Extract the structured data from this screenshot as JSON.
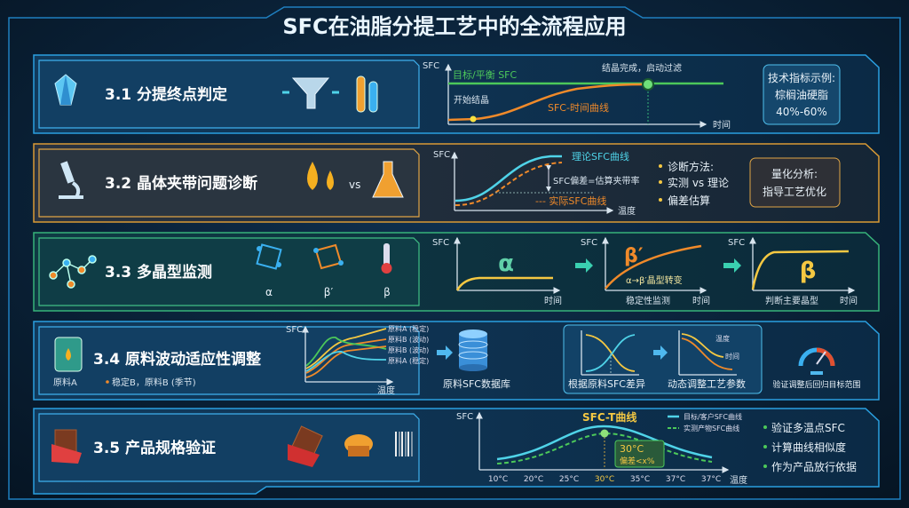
{
  "title": "SFC在油脂分提工艺中的全流程应用",
  "colors": {
    "blue": "#2a9fe0",
    "orange": "#d99a35",
    "green": "#37b37a",
    "cyan": "#4fd3e8",
    "curve_orange": "#f08a2a",
    "yellow": "#f5c842",
    "line_green": "#4cc85a"
  },
  "rows": [
    {
      "title": "3.1 分提终点判定",
      "icons": [
        "crystal-icon",
        "funnel-icon",
        "test-tubes-icon"
      ],
      "chart": {
        "y_label": "SFC",
        "x_label": "时间",
        "target_label": "目标/平衡 SFC",
        "curve_label": "SFC-时间曲线",
        "start_label": "开始结晶",
        "end_label": "结晶完成，启动过滤"
      },
      "info": [
        "技术指标示例:",
        "棕榈油硬脂",
        "40%-60%"
      ]
    },
    {
      "title": "3.2 晶体夹带问题诊断",
      "icons": [
        "microscope-icon",
        "oil-drops-icon",
        "flask-icon"
      ],
      "vs": "vs",
      "chart": {
        "y_label": "SFC",
        "x_label": "温度",
        "theory_label": "理论SFC曲线",
        "actual_label": "--- 实际SFC曲线",
        "gap_label": "SFC偏差=估算夹带率"
      },
      "bullets": [
        "诊断方法:",
        "实测 vs 理论",
        "偏差估算"
      ],
      "info": [
        "量化分析:",
        "指导工艺优化"
      ]
    },
    {
      "title": "3.3 多晶型监测",
      "icons": [
        "molecule-icon",
        "crystal-lattice-icon",
        "crystal-lattice-icon",
        "thermometer-icon"
      ],
      "forms": [
        "α",
        "β′",
        "β"
      ],
      "charts": [
        {
          "y_label": "SFC",
          "x_label": "时间",
          "form": "α",
          "caption": ""
        },
        {
          "y_label": "SFC",
          "x_label": "时间",
          "form": "β′",
          "note": "α→β′晶型转变",
          "caption": "稳定性监测"
        },
        {
          "y_label": "SFC",
          "x_label": "时间",
          "form": "β",
          "caption": "判断主要晶型"
        }
      ]
    },
    {
      "title": "3.4 原料波动适应性调整",
      "icon_label": "原料A",
      "sub": "稳定B，原料B (季节)",
      "chart": {
        "y_label": "SFC",
        "x_label": "温度",
        "legend": [
          "原料A (稳定)",
          "原料B (波动)",
          "原料B (波动)",
          "原料A (稳定)"
        ]
      },
      "database_label": "原料SFC数据库",
      "step1_label": "根据原料SFC差异",
      "step2_label": "动态调整工艺参数",
      "step2_tags": [
        "温度",
        "时间"
      ],
      "gauge_label": "验证调整后回归目标范围"
    },
    {
      "title": "3.5 产品规格验证",
      "icons": [
        "chocolate-icon",
        "pastry-icon",
        "barcode-icon"
      ],
      "chart": {
        "title": "SFC-T曲线",
        "y_label": "SFC",
        "x_label": "温度",
        "ticks": [
          "10°C",
          "20°C",
          "25°C",
          "30°C",
          "35°C",
          "37°C",
          "37°C"
        ],
        "legend": [
          "目标/客户SFC曲线",
          "实测产物SFC曲线"
        ],
        "callout": [
          "30°C",
          "偏差<x%"
        ]
      },
      "bullets": [
        "验证多温点SFC",
        "计算曲线相似度",
        "作为产品放行依据"
      ]
    }
  ]
}
